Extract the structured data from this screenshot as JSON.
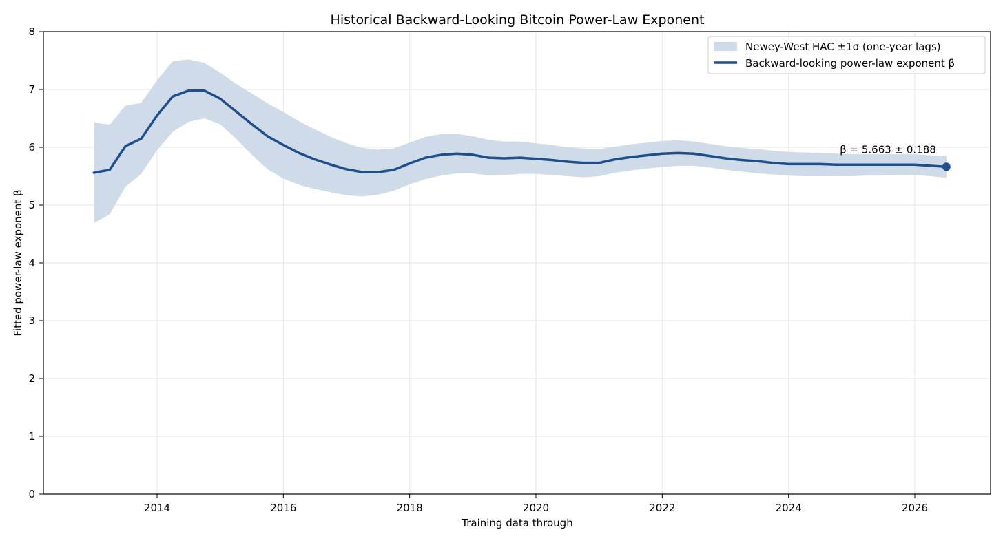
{
  "chart_data": {
    "type": "line",
    "title": "Historical Backward-Looking Bitcoin Power-Law Exponent",
    "xlabel": "Training data through",
    "ylabel": "Fitted power-law exponent β",
    "xlim": [
      2012.2,
      2027.2
    ],
    "ylim": [
      0,
      8
    ],
    "x_ticks": [
      2014,
      2016,
      2018,
      2020,
      2022,
      2024,
      2026
    ],
    "y_ticks": [
      0,
      1,
      2,
      3,
      4,
      5,
      6,
      7,
      8
    ],
    "grid": true,
    "legend_position": "top-right",
    "colors": {
      "line": "#1f4e8c",
      "band": "#cfdbe8",
      "grid": "#e6e6e6"
    },
    "series": [
      {
        "name": "Backward-looking power-law exponent β",
        "kind": "line",
        "x": [
          2013.0,
          2013.25,
          2013.5,
          2013.75,
          2014.0,
          2014.25,
          2014.5,
          2014.75,
          2015.0,
          2015.25,
          2015.5,
          2015.75,
          2016.0,
          2016.25,
          2016.5,
          2016.75,
          2017.0,
          2017.25,
          2017.5,
          2017.75,
          2018.0,
          2018.25,
          2018.5,
          2018.75,
          2019.0,
          2019.25,
          2019.5,
          2019.75,
          2020.0,
          2020.25,
          2020.5,
          2020.75,
          2021.0,
          2021.25,
          2021.5,
          2021.75,
          2022.0,
          2022.25,
          2022.5,
          2022.75,
          2023.0,
          2023.25,
          2023.5,
          2023.75,
          2024.0,
          2024.25,
          2024.5,
          2024.75,
          2025.0,
          2025.25,
          2025.5,
          2025.75,
          2026.0,
          2026.25,
          2026.5
        ],
        "y": [
          5.56,
          5.61,
          6.02,
          6.15,
          6.55,
          6.88,
          6.98,
          6.98,
          6.84,
          6.62,
          6.4,
          6.19,
          6.04,
          5.9,
          5.79,
          5.7,
          5.62,
          5.57,
          5.57,
          5.61,
          5.72,
          5.82,
          5.87,
          5.89,
          5.87,
          5.82,
          5.81,
          5.82,
          5.8,
          5.78,
          5.75,
          5.73,
          5.73,
          5.79,
          5.83,
          5.86,
          5.89,
          5.9,
          5.89,
          5.85,
          5.81,
          5.78,
          5.76,
          5.73,
          5.71,
          5.71,
          5.71,
          5.7,
          5.7,
          5.7,
          5.7,
          5.7,
          5.7,
          5.68,
          5.663
        ]
      },
      {
        "name": "Newey-West HAC ±1σ (one-year lags)",
        "kind": "band",
        "x": [
          2013.0,
          2013.25,
          2013.5,
          2013.75,
          2014.0,
          2014.25,
          2014.5,
          2014.75,
          2015.0,
          2015.25,
          2015.5,
          2015.75,
          2016.0,
          2016.25,
          2016.5,
          2016.75,
          2017.0,
          2017.25,
          2017.5,
          2017.75,
          2018.0,
          2018.25,
          2018.5,
          2018.75,
          2019.0,
          2019.25,
          2019.5,
          2019.75,
          2020.0,
          2020.25,
          2020.5,
          2020.75,
          2021.0,
          2021.25,
          2021.5,
          2021.75,
          2022.0,
          2022.25,
          2022.5,
          2022.75,
          2023.0,
          2023.25,
          2023.5,
          2023.75,
          2024.0,
          2024.25,
          2024.5,
          2024.75,
          2025.0,
          2025.25,
          2025.5,
          2025.75,
          2026.0,
          2026.25,
          2026.5
        ],
        "lower": [
          4.69,
          4.84,
          5.32,
          5.54,
          5.95,
          6.27,
          6.44,
          6.5,
          6.4,
          6.15,
          5.87,
          5.62,
          5.46,
          5.35,
          5.28,
          5.22,
          5.17,
          5.15,
          5.18,
          5.25,
          5.36,
          5.45,
          5.51,
          5.55,
          5.55,
          5.51,
          5.52,
          5.54,
          5.54,
          5.52,
          5.5,
          5.48,
          5.5,
          5.56,
          5.6,
          5.63,
          5.66,
          5.68,
          5.68,
          5.65,
          5.61,
          5.58,
          5.55,
          5.53,
          5.51,
          5.5,
          5.5,
          5.5,
          5.5,
          5.51,
          5.51,
          5.52,
          5.52,
          5.5,
          5.47
        ],
        "upper": [
          6.43,
          6.39,
          6.72,
          6.77,
          7.16,
          7.49,
          7.52,
          7.46,
          7.29,
          7.1,
          6.93,
          6.76,
          6.61,
          6.45,
          6.31,
          6.18,
          6.07,
          5.99,
          5.96,
          5.98,
          6.08,
          6.18,
          6.23,
          6.23,
          6.19,
          6.13,
          6.1,
          6.1,
          6.07,
          6.04,
          6.0,
          5.98,
          5.97,
          6.01,
          6.05,
          6.08,
          6.11,
          6.12,
          6.1,
          6.06,
          6.02,
          5.99,
          5.97,
          5.94,
          5.92,
          5.91,
          5.9,
          5.89,
          5.88,
          5.88,
          5.88,
          5.88,
          5.88,
          5.86,
          5.85
        ]
      }
    ],
    "endpoint": {
      "x": 2026.5,
      "y": 5.663,
      "label": "β = 5.663 ± 0.188"
    }
  }
}
